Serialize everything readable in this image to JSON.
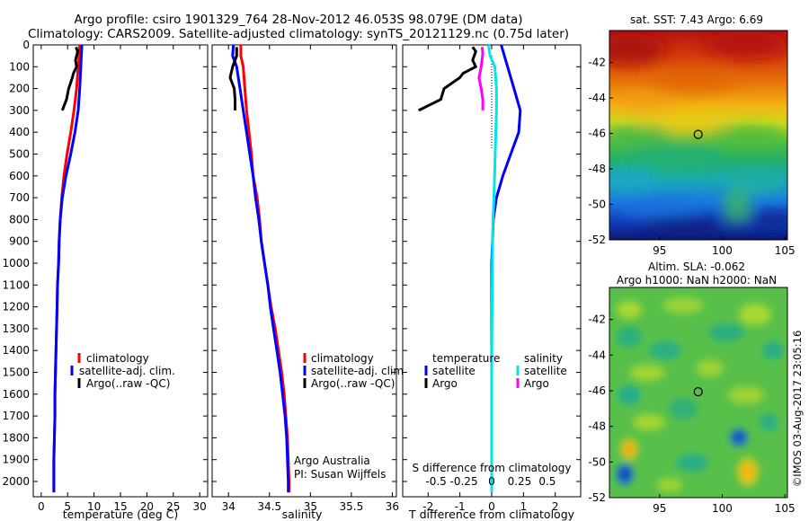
{
  "header": {
    "title_line1": "Argo profile: csiro 1901329_764 28-Nov-2012 46.053S 98.079E (DM data)",
    "title_line2": "Climatology: CARS2009. Satellite-adjusted climatology: synTS_20121129.nc (0.75d later)"
  },
  "colors": {
    "climatology": "#ff0000",
    "satellite": "#0000ff",
    "argo": "#000000",
    "satellite_salinity": "#00e5e5",
    "argo_salinity": "#ff00ff"
  },
  "chart_data": [
    {
      "type": "line",
      "id": "temperature",
      "xlabel": "temperature (deg C)",
      "xticks": [
        0,
        5,
        10,
        15,
        20,
        25,
        30
      ],
      "xlim": [
        -1.5,
        31.5
      ],
      "ylim": [
        0,
        2070
      ],
      "yticks": [
        0,
        100,
        200,
        300,
        400,
        500,
        600,
        700,
        800,
        900,
        1000,
        1100,
        1200,
        1300,
        1400,
        1500,
        1600,
        1700,
        1800,
        1900,
        2000
      ],
      "legend": {
        "placement": "lower-middle",
        "entries": [
          "climatology",
          "satellite-adj. clim.",
          "Argo(..raw -QC)"
        ]
      },
      "series": [
        {
          "name": "climatology",
          "color": "#ff0000",
          "points": [
            [
              7.3,
              0
            ],
            [
              7.2,
              50
            ],
            [
              7.0,
              100
            ],
            [
              6.7,
              200
            ],
            [
              6.2,
              300
            ],
            [
              5.6,
              400
            ],
            [
              4.9,
              500
            ],
            [
              4.3,
              600
            ],
            [
              3.9,
              700
            ],
            [
              3.6,
              800
            ],
            [
              3.4,
              900
            ],
            [
              3.3,
              1000
            ],
            [
              3.1,
              1100
            ],
            [
              3.0,
              1200
            ],
            [
              2.9,
              1300
            ],
            [
              2.8,
              1400
            ],
            [
              2.7,
              1500
            ],
            [
              2.6,
              1600
            ],
            [
              2.6,
              1700
            ],
            [
              2.5,
              1800
            ],
            [
              2.4,
              1900
            ],
            [
              2.4,
              2000
            ],
            [
              2.4,
              2050
            ]
          ]
        },
        {
          "name": "satellite-adj. clim.",
          "color": "#0000ff",
          "points": [
            [
              7.7,
              0
            ],
            [
              7.6,
              50
            ],
            [
              7.5,
              100
            ],
            [
              7.3,
              200
            ],
            [
              7.0,
              300
            ],
            [
              6.4,
              400
            ],
            [
              5.6,
              500
            ],
            [
              4.7,
              600
            ],
            [
              4.0,
              700
            ],
            [
              3.6,
              800
            ],
            [
              3.4,
              900
            ],
            [
              3.3,
              1000
            ],
            [
              3.1,
              1100
            ],
            [
              3.0,
              1200
            ],
            [
              2.9,
              1300
            ],
            [
              2.8,
              1400
            ],
            [
              2.7,
              1500
            ],
            [
              2.6,
              1600
            ],
            [
              2.6,
              1700
            ],
            [
              2.5,
              1800
            ],
            [
              2.4,
              1900
            ],
            [
              2.4,
              2000
            ],
            [
              2.4,
              2050
            ]
          ]
        },
        {
          "name": "Argo(..raw -QC)",
          "color": "#000000",
          "points": [
            [
              6.6,
              10
            ],
            [
              6.9,
              30
            ],
            [
              6.5,
              70
            ],
            [
              6.7,
              100
            ],
            [
              6.1,
              130
            ],
            [
              5.9,
              150
            ],
            [
              5.2,
              200
            ],
            [
              4.8,
              250
            ],
            [
              4.0,
              300
            ]
          ]
        }
      ]
    },
    {
      "type": "line",
      "id": "salinity",
      "xlabel": "salinity",
      "xticks": [
        34,
        34.5,
        35,
        35.5,
        36
      ],
      "xlim": [
        33.8,
        36.05
      ],
      "ylim": [
        0,
        2070
      ],
      "legend": {
        "placement": "lower-middle",
        "entries": [
          "climatology",
          "satellite-adj. clim.",
          "Argo(..raw -QC)"
        ]
      },
      "annotation_line1": "Argo Australia",
      "annotation_line2": "PI: Susan Wijffels",
      "series": [
        {
          "name": "climatology",
          "color": "#ff0000",
          "points": [
            [
              34.15,
              0
            ],
            [
              34.15,
              50
            ],
            [
              34.18,
              100
            ],
            [
              34.2,
              200
            ],
            [
              34.22,
              300
            ],
            [
              34.25,
              400
            ],
            [
              34.28,
              500
            ],
            [
              34.3,
              600
            ],
            [
              34.35,
              700
            ],
            [
              34.38,
              800
            ],
            [
              34.4,
              900
            ],
            [
              34.44,
              1000
            ],
            [
              34.48,
              1100
            ],
            [
              34.52,
              1200
            ],
            [
              34.57,
              1300
            ],
            [
              34.61,
              1400
            ],
            [
              34.65,
              1500
            ],
            [
              34.68,
              1600
            ],
            [
              34.7,
              1700
            ],
            [
              34.72,
              1800
            ],
            [
              34.73,
              1900
            ],
            [
              34.74,
              2000
            ],
            [
              34.74,
              2050
            ]
          ]
        },
        {
          "name": "satellite-adj. clim.",
          "color": "#0000ff",
          "points": [
            [
              34.06,
              0
            ],
            [
              34.05,
              50
            ],
            [
              34.1,
              100
            ],
            [
              34.14,
              200
            ],
            [
              34.18,
              300
            ],
            [
              34.22,
              400
            ],
            [
              34.26,
              500
            ],
            [
              34.3,
              600
            ],
            [
              34.33,
              700
            ],
            [
              34.37,
              800
            ],
            [
              34.4,
              900
            ],
            [
              34.44,
              1000
            ],
            [
              34.48,
              1100
            ],
            [
              34.51,
              1200
            ],
            [
              34.55,
              1300
            ],
            [
              34.59,
              1400
            ],
            [
              34.63,
              1500
            ],
            [
              34.66,
              1600
            ],
            [
              34.69,
              1700
            ],
            [
              34.71,
              1800
            ],
            [
              34.72,
              1900
            ],
            [
              34.73,
              2000
            ],
            [
              34.73,
              2050
            ]
          ]
        },
        {
          "name": "Argo(..raw -QC)",
          "color": "#000000",
          "points": [
            [
              34.1,
              10
            ],
            [
              34.1,
              50
            ],
            [
              34.05,
              100
            ],
            [
              34.02,
              150
            ],
            [
              34.07,
              200
            ],
            [
              34.08,
              250
            ],
            [
              34.08,
              300
            ]
          ]
        }
      ]
    },
    {
      "type": "line",
      "id": "difference",
      "xlabel": "T difference from climatology",
      "xlabel_top": "S difference from climatology",
      "xticks": [
        -2,
        -1,
        0,
        1,
        2
      ],
      "xticks_s": [
        -0.5,
        -0.25,
        0,
        0.25,
        0.5
      ],
      "xlim": [
        -2.8,
        2.8
      ],
      "ylim": [
        0,
        2070
      ],
      "legend": {
        "placement": "lower-middle",
        "header_t": "temperature",
        "header_s": "salinity",
        "entries": [
          "satellite",
          "Argo",
          "satellite",
          "Argo"
        ]
      },
      "series": [
        {
          "name": "satellite",
          "color": "#0000ff",
          "points": [
            [
              0.3,
              0
            ],
            [
              0.4,
              50
            ],
            [
              0.5,
              100
            ],
            [
              0.7,
              200
            ],
            [
              0.9,
              300
            ],
            [
              0.85,
              400
            ],
            [
              0.6,
              500
            ],
            [
              0.35,
              600
            ],
            [
              0.15,
              700
            ],
            [
              0.05,
              800
            ],
            [
              0.0,
              1000
            ],
            [
              0.0,
              1500
            ],
            [
              0.0,
              2050
            ]
          ]
        },
        {
          "name": "Argo",
          "color": "#000000",
          "points": [
            [
              -0.6,
              10
            ],
            [
              -0.5,
              30
            ],
            [
              -0.6,
              70
            ],
            [
              -0.5,
              100
            ],
            [
              -0.9,
              130
            ],
            [
              -1.0,
              150
            ],
            [
              -1.5,
              200
            ],
            [
              -1.6,
              250
            ],
            [
              -2.3,
              300
            ]
          ]
        },
        {
          "name": "satellite",
          "color": "#00e5e5",
          "points": [
            [
              -0.1,
              0
            ],
            [
              -0.05,
              50
            ],
            [
              0.1,
              100
            ],
            [
              0.15,
              200
            ],
            [
              0.15,
              300
            ],
            [
              0.13,
              400
            ],
            [
              0.11,
              500
            ],
            [
              0.09,
              600
            ],
            [
              0.07,
              700
            ],
            [
              0.04,
              800
            ],
            [
              0.02,
              1000
            ],
            [
              0.0,
              1500
            ],
            [
              0.0,
              2050
            ]
          ]
        },
        {
          "name": "Argo",
          "color": "#ff00ff",
          "points": [
            [
              -0.3,
              10
            ],
            [
              -0.28,
              40
            ],
            [
              -0.33,
              100
            ],
            [
              -0.4,
              150
            ],
            [
              -0.33,
              200
            ],
            [
              -0.28,
              250
            ],
            [
              -0.28,
              300
            ]
          ]
        }
      ]
    },
    {
      "type": "heatmap",
      "id": "sst-map",
      "title": "sat. SST: 7.43 Argo: 6.69",
      "xlim": [
        91,
        105.2
      ],
      "ylim": [
        -52,
        -40.2
      ],
      "xticks": [
        95,
        100,
        105
      ],
      "yticks": [
        -42,
        -44,
        -46,
        -48,
        -50,
        -52
      ],
      "marker": {
        "lon": 98.079,
        "lat": -46.053
      }
    },
    {
      "type": "heatmap",
      "id": "sla-map",
      "title_line1": "Altim. SLA: -0.062",
      "title_line2": "Argo h1000: NaN h2000: NaN",
      "xlim": [
        91,
        105.2
      ],
      "ylim": [
        -52,
        -40.2
      ],
      "xticks": [
        95,
        100,
        105
      ],
      "yticks": [
        -42,
        -44,
        -46,
        -48,
        -50,
        -52
      ],
      "marker": {
        "lon": 98.079,
        "lat": -46.053
      }
    }
  ],
  "footer": {
    "stamp": "©IMOS 03-Aug-2017 23:05:16"
  }
}
